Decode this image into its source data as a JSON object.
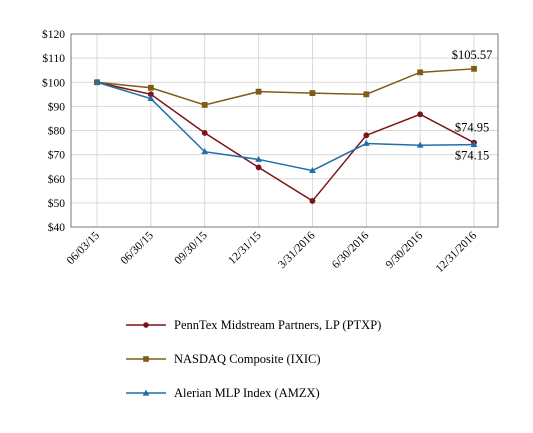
{
  "chart_data": {
    "type": "line",
    "title": "",
    "xlabel": "",
    "ylabel": "",
    "categories": [
      "06/03/15",
      "06/30/15",
      "09/30/15",
      "12/31/15",
      "3/31/2016",
      "6/30/2016",
      "9/30/2016",
      "12/31/2016"
    ],
    "ylim": [
      40,
      120
    ],
    "yticks": [
      40,
      50,
      60,
      70,
      80,
      90,
      100,
      110,
      120
    ],
    "ytick_labels": [
      "$40",
      "$50",
      "$60",
      "$70",
      "$80",
      "$90",
      "$100",
      "$110",
      "$120"
    ],
    "grid": true,
    "legend_position": "bottom",
    "series": [
      {
        "name": "PennTex Midstream Partners, LP (PTXP)",
        "color": "#7b1416",
        "marker": "circle",
        "values": [
          100,
          95,
          79,
          64.7,
          50.8,
          78,
          86.7,
          74.95
        ]
      },
      {
        "name": "NASDAQ Composite (IXIC)",
        "color": "#7f5c16",
        "marker": "square",
        "values": [
          100,
          97.7,
          90.6,
          96.1,
          95.5,
          95,
          104.1,
          105.57
        ]
      },
      {
        "name": "Alerian MLP Index (AMZX)",
        "color": "#1f6fa8",
        "marker": "triangle",
        "values": [
          100,
          93.2,
          71.2,
          68,
          63.4,
          74.6,
          73.9,
          74.15
        ]
      }
    ],
    "annotations": [
      {
        "text": "$105.57",
        "series": 1,
        "index": 7
      },
      {
        "text": "$74.95",
        "series": 0,
        "index": 7
      },
      {
        "text": "$74.15",
        "series": 2,
        "index": 7
      }
    ]
  }
}
